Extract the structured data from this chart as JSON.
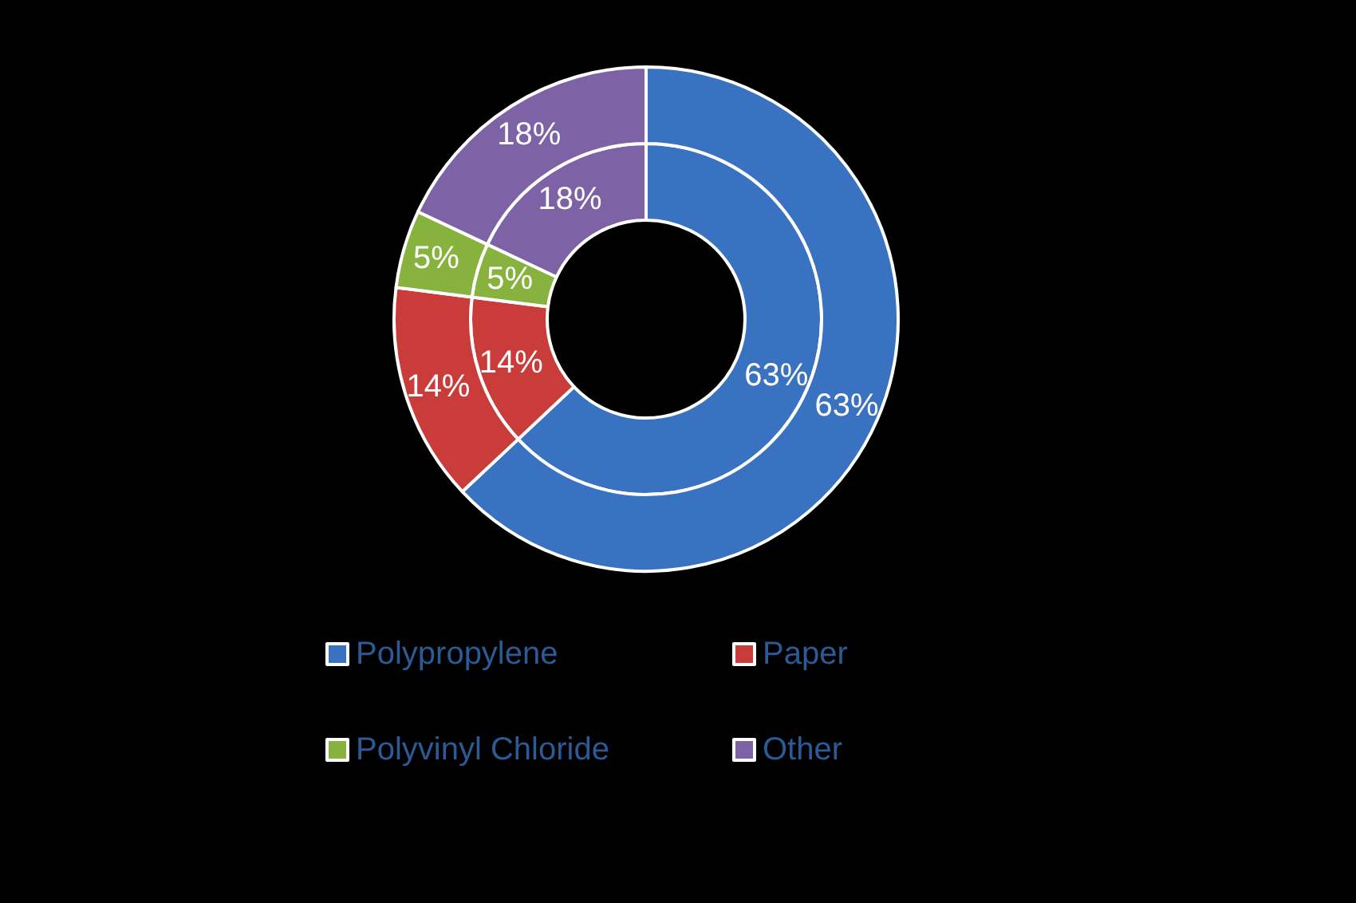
{
  "chart_data": {
    "type": "donut",
    "categories": [
      "Polypropylene",
      "Paper",
      "Polyvinyl Chloride",
      "Other"
    ],
    "colors": [
      "#3a72c2",
      "#c93c3a",
      "#88b23e",
      "#7e62a6"
    ],
    "series": [
      {
        "values": [
          63,
          14,
          5,
          18
        ],
        "value_labels": [
          "63%",
          "14%",
          "5%",
          "18%"
        ]
      },
      {
        "values": [
          63,
          14,
          5,
          18
        ],
        "value_labels": [
          "63%",
          "14%",
          "5%",
          "18%"
        ]
      }
    ],
    "legend": "bottom"
  }
}
